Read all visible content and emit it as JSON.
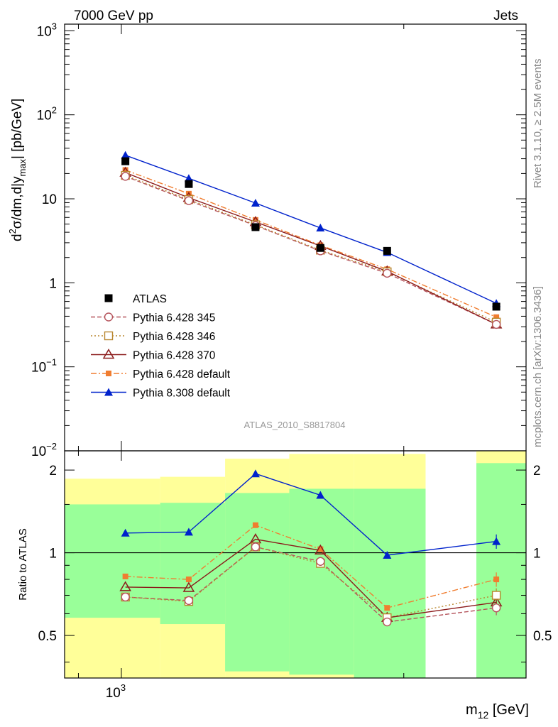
{
  "header": {
    "left": "7000 GeV pp",
    "right": "Jets"
  },
  "side": {
    "rivet": "Rivet 3.1.10, ≥ 2.5M events",
    "mcplots": "mcplots.cern.ch [arXiv:1306.3436]"
  },
  "analysis_id": "ATLAS_2010_S8817804",
  "colors": {
    "data": "#000000",
    "p345": "#b5545c",
    "p346": "#b8862e",
    "p370": "#8b1a1a",
    "p6def": "#f07d30",
    "p8def": "#0022cc",
    "band_inner": "#99ff99",
    "band_outer": "#ffff99"
  },
  "chart_data": [
    {
      "type": "line",
      "panel": "main",
      "ylabel_parts": {
        "d": "d",
        "sup": "2",
        "mid": "σ/dm,d|y",
        "sub": "max",
        "end": "| [pb/GeV]"
      },
      "yscale": "log",
      "ylim": [
        0.01,
        1200
      ],
      "yticks": [
        {
          "value": 0.01,
          "base": "10",
          "exp": "−2"
        },
        {
          "value": 0.1,
          "base": "10",
          "exp": "−1"
        },
        {
          "value": 1,
          "base": "1",
          "exp": ""
        },
        {
          "value": 10,
          "base": "10",
          "exp": ""
        },
        {
          "value": 100,
          "base": "10",
          "exp": "2"
        },
        {
          "value": 1000,
          "base": "10",
          "exp": "3"
        }
      ],
      "x": [
        1010,
        1180,
        1390,
        1630,
        1920,
        2510
      ],
      "series": [
        {
          "name": "ATLAS",
          "key": "data",
          "marker": "square-filled",
          "dash": "none",
          "values": [
            28,
            15,
            4.6,
            2.6,
            2.4,
            0.52
          ]
        },
        {
          "name": "Pythia 6.428 345",
          "key": "p345",
          "marker": "circle-open",
          "dash": "6,3",
          "values": [
            18.5,
            9.5,
            4.8,
            2.4,
            1.3,
            0.32
          ]
        },
        {
          "name": "Pythia 6.428 346",
          "key": "p346",
          "marker": "square-open",
          "dash": "2,3",
          "values": [
            19,
            9.8,
            4.9,
            2.45,
            1.35,
            0.34
          ]
        },
        {
          "name": "Pythia 6.428 370",
          "key": "p370",
          "marker": "triangle-open",
          "dash": "none",
          "values": [
            20.5,
            10.3,
            5.3,
            2.75,
            1.37,
            0.32
          ]
        },
        {
          "name": "Pythia 6.428 default",
          "key": "p6def",
          "marker": "square-small",
          "dash": "8,3,2,3",
          "values": [
            22,
            11.5,
            5.6,
            2.8,
            1.45,
            0.39
          ]
        },
        {
          "name": "Pythia 8.308 default",
          "key": "p8def",
          "marker": "triangle-filled",
          "dash": "none",
          "values": [
            33,
            17.5,
            8.9,
            4.5,
            2.3,
            0.57
          ]
        }
      ]
    },
    {
      "type": "line",
      "panel": "ratio",
      "ylabel": "Ratio to ATLAS",
      "yscale": "log",
      "ylim": [
        0.35,
        2.35
      ],
      "yticks": [
        {
          "value": 0.5,
          "label": "0.5"
        },
        {
          "value": 1,
          "label": "1"
        },
        {
          "value": 2,
          "label": "2"
        }
      ],
      "xlabel_parts": {
        "main": "m",
        "sub": "12",
        "end": " [GeV]"
      },
      "xscale": "log",
      "xlim": [
        870,
        2700
      ],
      "xticks": [
        {
          "value": 1000,
          "base": "10",
          "exp": "3"
        }
      ],
      "bands": [
        {
          "x0": 870,
          "x1": 1100,
          "inner": [
            0.58,
            1.5
          ],
          "outer": [
            0.35,
            1.86
          ]
        },
        {
          "x0": 1100,
          "x1": 1290,
          "inner": [
            0.55,
            1.52
          ],
          "outer": [
            0.35,
            1.89
          ]
        },
        {
          "x0": 1290,
          "x1": 1510,
          "inner": [
            0.37,
            1.65
          ],
          "outer": [
            0.35,
            2.2
          ]
        },
        {
          "x0": 1510,
          "x1": 1770,
          "inner": [
            0.36,
            1.71
          ],
          "outer": [
            0.35,
            2.29
          ]
        },
        {
          "x0": 1770,
          "x1": 2110,
          "inner": [
            0.35,
            1.71
          ],
          "outer": [
            0.35,
            2.29
          ]
        },
        {
          "x0": 2390,
          "x1": 2700,
          "inner": [
            0.35,
            2.12
          ],
          "outer": [
            0.35,
            2.45
          ]
        }
      ],
      "x": [
        1010,
        1180,
        1390,
        1630,
        1920,
        2510
      ],
      "series": [
        {
          "name": "Pythia 6.428 345",
          "key": "p345",
          "marker": "circle-open",
          "dash": "6,3",
          "values": [
            0.69,
            0.67,
            1.05,
            0.93,
            0.56,
            0.63
          ]
        },
        {
          "name": "Pythia 6.428 346",
          "key": "p346",
          "marker": "square-open",
          "dash": "2,3",
          "values": [
            0.69,
            0.665,
            1.05,
            0.915,
            0.58,
            0.7
          ]
        },
        {
          "name": "Pythia 6.428 370",
          "key": "p370",
          "marker": "triangle-open",
          "dash": "none",
          "values": [
            0.75,
            0.745,
            1.12,
            1.02,
            0.58,
            0.66
          ]
        },
        {
          "name": "Pythia 6.428 default",
          "key": "p6def",
          "marker": "square-small",
          "dash": "8,3,2,3",
          "values": [
            0.82,
            0.8,
            1.26,
            1.03,
            0.63,
            0.8
          ]
        },
        {
          "name": "Pythia 8.308 default",
          "key": "p8def",
          "marker": "triangle-filled",
          "dash": "none",
          "values": [
            1.18,
            1.19,
            1.94,
            1.62,
            0.98,
            1.1
          ]
        }
      ]
    }
  ]
}
